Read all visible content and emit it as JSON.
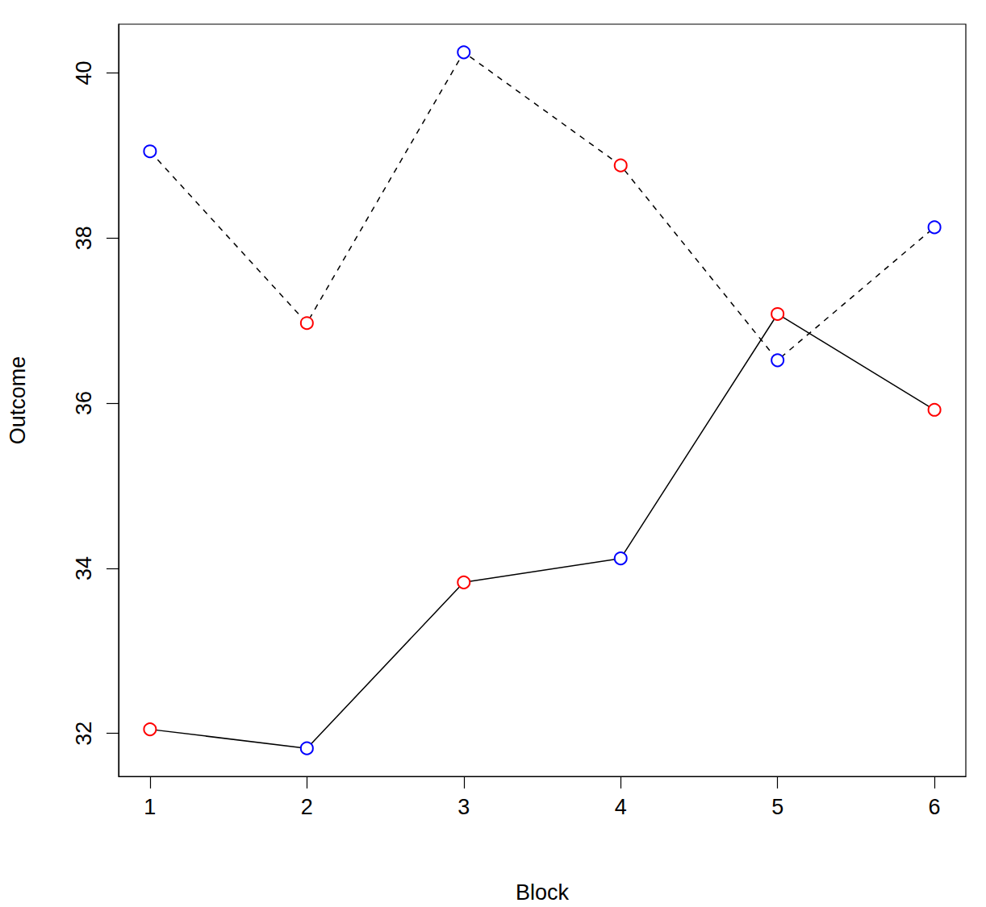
{
  "chart_data": {
    "type": "line",
    "x_label": "Block",
    "y_label": "Outcome",
    "x": [
      1,
      2,
      3,
      4,
      5,
      6
    ],
    "series": [
      {
        "values": [
          39.05,
          36.97,
          40.25,
          38.88,
          36.52,
          38.13
        ],
        "color": "#000000",
        "line_style": "dashed",
        "marker": "circle",
        "colors": [
          "#0000ff",
          "#ff0000",
          "#0000ff",
          "#ff0000",
          "#0000ff",
          "#0000ff"
        ]
      },
      {
        "values": [
          32.05,
          31.82,
          33.83,
          34.12,
          37.08,
          35.92
        ],
        "color": "#000000",
        "line_style": "solid",
        "marker": "circle",
        "colors": [
          "#ff0000",
          "#0000ff",
          "#ff0000",
          "#0000ff",
          "#ff0000",
          "#ff0000"
        ]
      }
    ],
    "xlim": [
      0.8,
      6.2
    ],
    "xticks": [
      1,
      2,
      3,
      4,
      5,
      6
    ],
    "ylim": [
      31.48,
      40.59
    ],
    "yticks": [
      32,
      34,
      36,
      38,
      40
    ],
    "grid": false
  }
}
